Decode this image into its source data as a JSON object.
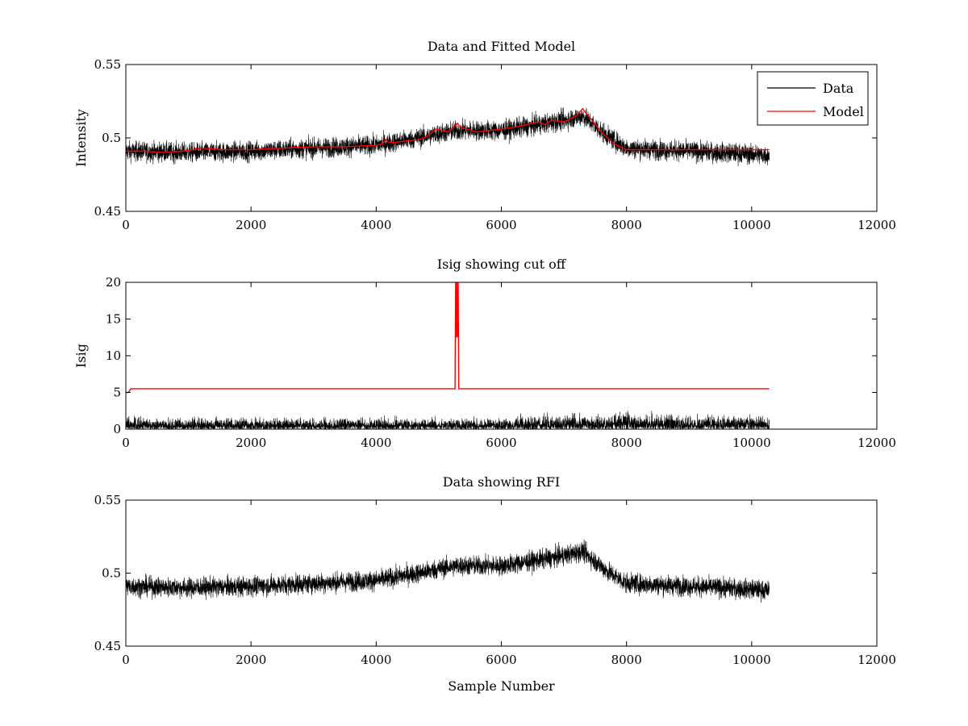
{
  "figure": {
    "background": "#ffffff",
    "series_colors": {
      "data": "#000000",
      "model": "#ff0000"
    }
  },
  "chart_data": [
    {
      "type": "line",
      "title": "Data and Fitted Model",
      "xlabel": "",
      "ylabel": "Intensity",
      "xlim": [
        0,
        12000
      ],
      "ylim": [
        0.45,
        0.55
      ],
      "xticks": [
        0,
        2000,
        4000,
        6000,
        8000,
        10000,
        12000
      ],
      "yticks": [
        0.45,
        0.5,
        0.55
      ],
      "xtick_labels": [
        "0",
        "2000",
        "4000",
        "6000",
        "8000",
        "10000",
        "12000"
      ],
      "ytick_labels": [
        "0.45",
        "0.5",
        "0.55"
      ],
      "grid": false,
      "legend": {
        "position": "top-right",
        "entries": [
          "Data",
          "Model"
        ]
      },
      "series": [
        {
          "name": "Data",
          "color": "#000000",
          "style": "noisy",
          "noise_amplitude": 0.006,
          "x": [
            0,
            1000,
            2000,
            3000,
            4000,
            4800,
            5000,
            5300,
            6000,
            6600,
            7000,
            7300,
            7700,
            8000,
            9000,
            10000,
            10280
          ],
          "y": [
            0.491,
            0.49,
            0.491,
            0.493,
            0.495,
            0.501,
            0.503,
            0.505,
            0.505,
            0.509,
            0.512,
            0.515,
            0.501,
            0.493,
            0.491,
            0.489,
            0.488
          ]
        },
        {
          "name": "Model",
          "color": "#ff0000",
          "style": "line",
          "x": [
            0,
            300,
            600,
            900,
            1200,
            1600,
            2000,
            2500,
            3000,
            3500,
            4000,
            4100,
            4150,
            4200,
            4300,
            4500,
            4700,
            4850,
            4950,
            5050,
            5150,
            5250,
            5300,
            5350,
            5450,
            5600,
            5800,
            6000,
            6300,
            6600,
            6700,
            6800,
            7000,
            7200,
            7300,
            7350,
            7450,
            7600,
            7800,
            8000,
            8500,
            9000,
            10280
          ],
          "y": [
            0.491,
            0.491,
            0.49,
            0.491,
            0.493,
            0.492,
            0.492,
            0.493,
            0.494,
            0.494,
            0.495,
            0.496,
            0.499,
            0.497,
            0.497,
            0.498,
            0.499,
            0.502,
            0.506,
            0.505,
            0.504,
            0.508,
            0.51,
            0.507,
            0.506,
            0.504,
            0.505,
            0.506,
            0.508,
            0.511,
            0.509,
            0.512,
            0.511,
            0.515,
            0.52,
            0.517,
            0.512,
            0.504,
            0.496,
            0.492,
            0.492,
            0.492,
            0.492
          ]
        }
      ]
    },
    {
      "type": "line",
      "title": "Isig showing cut off",
      "xlabel": "",
      "ylabel": "Isig",
      "xlim": [
        0,
        12000
      ],
      "ylim": [
        0,
        20
      ],
      "xticks": [
        0,
        2000,
        4000,
        6000,
        8000,
        10000,
        12000
      ],
      "yticks": [
        0,
        5,
        10,
        15,
        20
      ],
      "xtick_labels": [
        "0",
        "2000",
        "4000",
        "6000",
        "8000",
        "10000",
        "12000"
      ],
      "ytick_labels": [
        "0",
        "5",
        "10",
        "15",
        "20"
      ],
      "grid": false,
      "series": [
        {
          "color": "#000000",
          "style": "abs-noise",
          "noise_amplitude": 1.6,
          "x": [
            0,
            2000,
            4000,
            6000,
            7500,
            8000,
            9000,
            10280
          ],
          "y": [
            0.6,
            0.6,
            0.6,
            0.6,
            0.8,
            0.9,
            0.7,
            0.7
          ]
        },
        {
          "color": "#ff0000",
          "style": "line",
          "x": [
            0,
            40,
            80,
            5260,
            5270,
            5280,
            5290,
            5300,
            5310,
            5320,
            10280
          ],
          "y": [
            5.0,
            5.0,
            5.5,
            5.5,
            20,
            12.5,
            20,
            12.5,
            20,
            5.5,
            5.5
          ]
        }
      ]
    },
    {
      "type": "line",
      "title": "Data showing RFI",
      "xlabel": "Sample Number",
      "ylabel": "",
      "xlim": [
        0,
        12000
      ],
      "ylim": [
        0.45,
        0.55
      ],
      "xticks": [
        0,
        2000,
        4000,
        6000,
        8000,
        10000,
        12000
      ],
      "yticks": [
        0.45,
        0.5,
        0.55
      ],
      "xtick_labels": [
        "0",
        "2000",
        "4000",
        "6000",
        "8000",
        "10000",
        "12000"
      ],
      "ytick_labels": [
        "0.45",
        "0.5",
        "0.55"
      ],
      "grid": false,
      "series": [
        {
          "color": "#000000",
          "style": "noisy",
          "noise_amplitude": 0.006,
          "x": [
            0,
            1000,
            2000,
            3000,
            4000,
            4800,
            5000,
            5300,
            6000,
            6600,
            7000,
            7300,
            7700,
            8000,
            9000,
            10000,
            10280
          ],
          "y": [
            0.491,
            0.49,
            0.491,
            0.493,
            0.495,
            0.501,
            0.503,
            0.505,
            0.505,
            0.509,
            0.512,
            0.515,
            0.501,
            0.493,
            0.491,
            0.489,
            0.488
          ]
        }
      ]
    }
  ]
}
